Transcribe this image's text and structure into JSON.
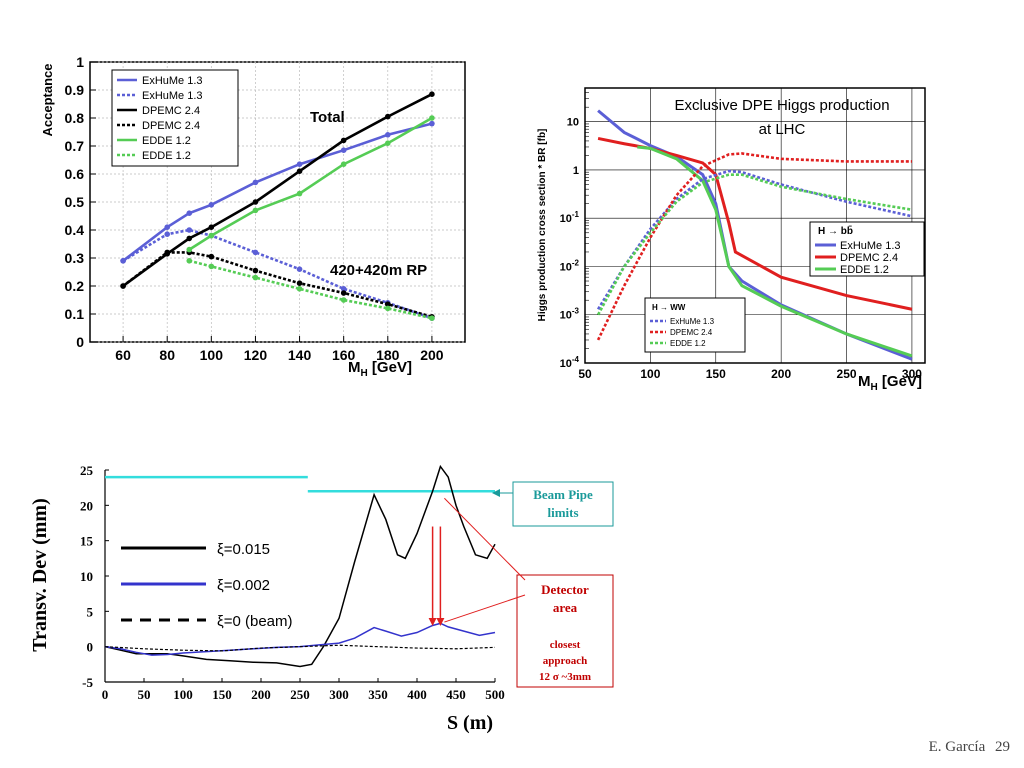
{
  "footer": {
    "author": "E. García",
    "page": "29"
  },
  "colors": {
    "blue": "#5b5fd6",
    "black": "#000000",
    "green": "#55cc55",
    "red": "#e01f1f",
    "cyan": "#33dddd",
    "darkred": "#c00000",
    "teal": "#1a9a9a"
  },
  "chart_data": [
    {
      "type": "line",
      "xlabel": "M_H [GeV]",
      "ylabel": "Acceptance",
      "xlim": [
        45,
        215
      ],
      "ylim": [
        0,
        1
      ],
      "x_ticks": [
        "60",
        "80",
        "100",
        "120",
        "140",
        "160",
        "180",
        "200"
      ],
      "y_ticks": [
        "0",
        "0.1",
        "0.2",
        "0.3",
        "0.4",
        "0.5",
        "0.6",
        "0.7",
        "0.8",
        "0.9",
        "1"
      ],
      "grid": true,
      "legend_position": "top-left",
      "annotations": [
        "Total",
        "420+420m RP"
      ],
      "series": [
        {
          "name": "ExHuMe 1.3",
          "style": "solid",
          "color": "#5b5fd6",
          "x": [
            60,
            80,
            90,
            100,
            120,
            140,
            160,
            180,
            200
          ],
          "y": [
            0.29,
            0.41,
            0.46,
            0.49,
            0.57,
            0.635,
            0.685,
            0.74,
            0.78
          ]
        },
        {
          "name": "ExHuMe 1.3",
          "style": "dotted",
          "color": "#5b5fd6",
          "x": [
            60,
            80,
            90,
            100,
            120,
            140,
            160,
            180,
            200
          ],
          "y": [
            0.29,
            0.385,
            0.4,
            0.38,
            0.32,
            0.26,
            0.19,
            0.14,
            0.085
          ]
        },
        {
          "name": "DPEMC 2.4",
          "style": "solid",
          "color": "#000000",
          "x": [
            60,
            80,
            90,
            100,
            120,
            140,
            160,
            180,
            200
          ],
          "y": [
            0.2,
            0.315,
            0.37,
            0.41,
            0.5,
            0.61,
            0.72,
            0.805,
            0.885
          ]
        },
        {
          "name": "DPEMC 2.4",
          "style": "dotted",
          "color": "#000000",
          "x": [
            60,
            80,
            90,
            100,
            120,
            140,
            160,
            180,
            200
          ],
          "y": [
            0.2,
            0.32,
            0.32,
            0.305,
            0.255,
            0.21,
            0.175,
            0.135,
            0.09
          ]
        },
        {
          "name": "EDDE 1.2",
          "style": "solid",
          "color": "#55cc55",
          "x": [
            90,
            100,
            120,
            140,
            160,
            180,
            200
          ],
          "y": [
            0.33,
            0.38,
            0.47,
            0.53,
            0.635,
            0.71,
            0.8
          ]
        },
        {
          "name": "EDDE 1.2",
          "style": "dotted",
          "color": "#55cc55",
          "x": [
            90,
            100,
            120,
            140,
            160,
            180,
            200
          ],
          "y": [
            0.29,
            0.27,
            0.23,
            0.19,
            0.15,
            0.12,
            0.085
          ]
        }
      ]
    },
    {
      "type": "line",
      "title": "Exclusive DPE Higgs production",
      "subtitle": "at LHC",
      "xlabel": "M_H [GeV]",
      "ylabel": "Higgs production cross section * BR [fb]",
      "xlim": [
        50,
        310
      ],
      "ylim": [
        0.0001,
        50
      ],
      "yscale": "log",
      "x_ticks": [
        "50",
        "100",
        "150",
        "200",
        "250",
        "300"
      ],
      "y_ticks": [
        "10^-4",
        "10^-3",
        "10^-2",
        "10^-1",
        "1",
        "10"
      ],
      "grid": true,
      "legends": [
        {
          "title": "H → bb̄",
          "position": "right",
          "entries": [
            "ExHuMe 1.3",
            "DPEMC 2.4",
            "EDDE 1.2"
          ]
        },
        {
          "title": "H → WW",
          "position": "bottom-left",
          "entries": [
            "ExHuMe 1.3",
            "DPEMC 2.4",
            "EDDE 1.2"
          ]
        }
      ],
      "series": [
        {
          "name": "ExHuMe 1.3",
          "decay": "bb",
          "style": "solid",
          "color": "#5b5fd6",
          "x": [
            60,
            80,
            100,
            120,
            140,
            150,
            160,
            170,
            200,
            250,
            300
          ],
          "y": [
            17,
            6,
            3.2,
            1.9,
            0.8,
            0.2,
            0.01,
            0.005,
            0.0016,
            0.0004,
            0.00012
          ]
        },
        {
          "name": "DPEMC 2.4",
          "decay": "bb",
          "style": "solid",
          "color": "#e01f1f",
          "x": [
            60,
            80,
            100,
            120,
            140,
            150,
            160,
            165,
            200,
            250,
            300
          ],
          "y": [
            4.5,
            3.5,
            2.8,
            2.0,
            1.4,
            0.8,
            0.08,
            0.02,
            0.006,
            0.0025,
            0.0013
          ]
        },
        {
          "name": "EDDE 1.2",
          "decay": "bb",
          "style": "solid",
          "color": "#55cc55",
          "x": [
            90,
            100,
            120,
            140,
            150,
            160,
            170,
            200,
            250,
            300
          ],
          "y": [
            3.0,
            2.8,
            1.7,
            0.6,
            0.15,
            0.01,
            0.004,
            0.0015,
            0.0004,
            0.00014
          ]
        },
        {
          "name": "ExHuMe 1.3",
          "decay": "WW",
          "style": "dotted",
          "color": "#5b5fd6",
          "x": [
            60,
            80,
            100,
            120,
            140,
            160,
            170,
            200,
            250,
            300
          ],
          "y": [
            0.0013,
            0.01,
            0.06,
            0.25,
            0.65,
            0.95,
            0.9,
            0.5,
            0.22,
            0.11
          ]
        },
        {
          "name": "DPEMC 2.4",
          "decay": "WW",
          "style": "dotted",
          "color": "#e01f1f",
          "x": [
            60,
            80,
            100,
            120,
            140,
            160,
            170,
            200,
            250,
            300
          ],
          "y": [
            0.0003,
            0.004,
            0.04,
            0.3,
            1.2,
            2.1,
            2.2,
            1.7,
            1.5,
            1.5
          ]
        },
        {
          "name": "EDDE 1.2",
          "decay": "WW",
          "style": "dotted",
          "color": "#55cc55",
          "x": [
            60,
            80,
            100,
            120,
            140,
            160,
            170,
            200,
            250,
            300
          ],
          "y": [
            0.001,
            0.01,
            0.05,
            0.22,
            0.55,
            0.8,
            0.8,
            0.45,
            0.25,
            0.15
          ]
        }
      ]
    },
    {
      "type": "line",
      "xlabel": "S (m)",
      "ylabel": "Transv. Dev (mm)",
      "xlim": [
        0,
        500
      ],
      "ylim": [
        -5,
        25
      ],
      "x_ticks": [
        "0",
        "50",
        "100",
        "150",
        "200",
        "250",
        "300",
        "350",
        "400",
        "450",
        "500"
      ],
      "y_ticks": [
        "-5",
        "0",
        "5",
        "10",
        "15",
        "20",
        "25"
      ],
      "grid": false,
      "series": [
        {
          "name": "ξ=0.015",
          "style": "solid",
          "color": "#000000",
          "x": [
            0,
            20,
            40,
            60,
            80,
            100,
            130,
            160,
            190,
            220,
            250,
            265,
            280,
            300,
            320,
            345,
            360,
            375,
            385,
            400,
            420,
            430,
            440,
            450,
            460,
            475,
            490,
            500
          ],
          "y": [
            0,
            -0.5,
            -1.0,
            -1.0,
            -1.0,
            -1.3,
            -1.8,
            -2.0,
            -2.2,
            -2.3,
            -2.8,
            -2.5,
            0,
            4,
            12,
            21.5,
            18,
            13,
            12.5,
            16,
            22,
            25.5,
            24,
            20,
            17,
            13,
            12.5,
            14.5
          ]
        },
        {
          "name": "ξ=0.002",
          "style": "solid",
          "color": "#3333cc",
          "x": [
            0,
            20,
            40,
            60,
            80,
            100,
            130,
            160,
            190,
            220,
            250,
            280,
            300,
            320,
            345,
            360,
            380,
            400,
            420,
            430,
            440,
            460,
            480,
            500
          ],
          "y": [
            0,
            -0.3,
            -0.8,
            -1.2,
            -1.1,
            -0.9,
            -0.7,
            -0.5,
            -0.3,
            -0.1,
            0,
            0.3,
            0.5,
            1.2,
            2.7,
            2.2,
            1.5,
            2.0,
            3.0,
            3.3,
            2.8,
            2.2,
            1.6,
            2.0
          ]
        },
        {
          "name": "ξ=0 (beam)",
          "style": "dashed",
          "color": "#000000",
          "x": [
            0,
            50,
            100,
            150,
            200,
            250,
            300,
            350,
            400,
            450,
            500
          ],
          "y": [
            0,
            -0.3,
            -0.5,
            -0.6,
            -0.2,
            0,
            0.2,
            0,
            -0.2,
            -0.3,
            -0.1
          ]
        }
      ],
      "beam_pipe_limits": [
        {
          "x": [
            0,
            260
          ],
          "y": 24
        },
        {
          "x": [
            260,
            500
          ],
          "y": 22
        }
      ],
      "detector_arrow_x": [
        420,
        430
      ],
      "callouts": {
        "beam_pipe": [
          "Beam Pipe",
          "limits"
        ],
        "detector": [
          "Detector",
          "area"
        ],
        "closest": [
          "closest",
          "approach",
          "12 σ ~3mm"
        ]
      }
    }
  ]
}
